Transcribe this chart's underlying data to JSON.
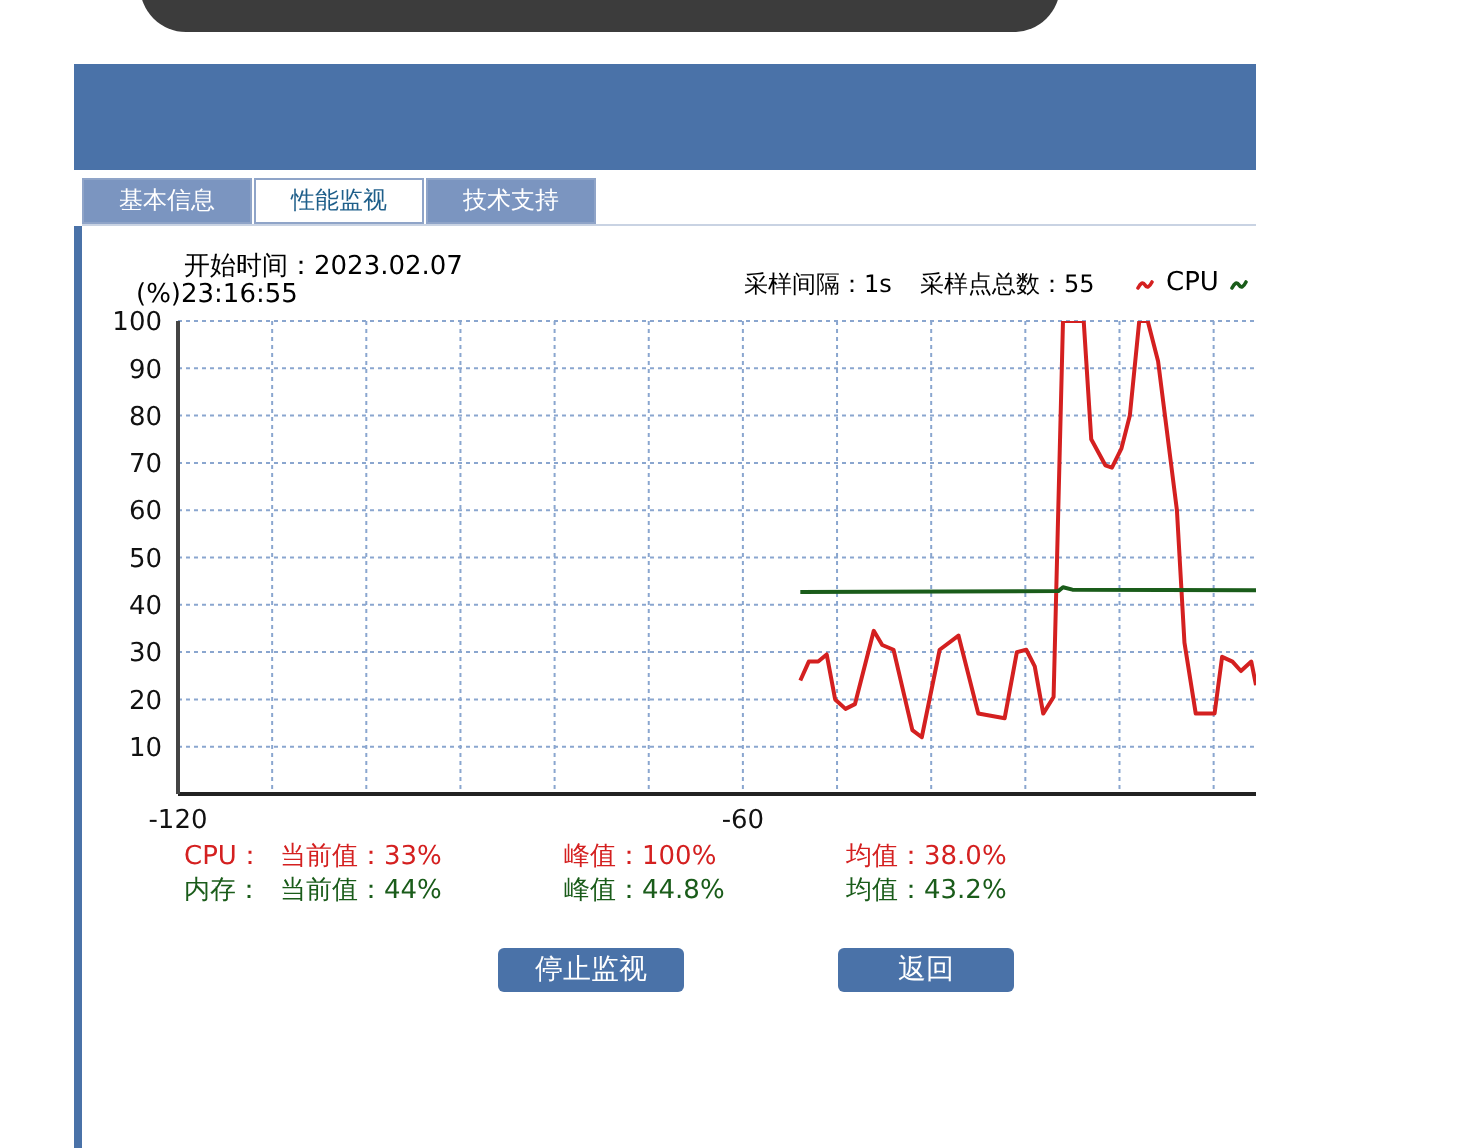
{
  "chart_data": {
    "type": "line",
    "ylabel": "(%)",
    "annotations": [
      "基本信息",
      "性能监视",
      "技术支持",
      "开始时间：2023.02.07",
      "23:16:55",
      "采样间隔：1s",
      "采样点总数：55",
      "CPU：",
      "当前值：33%",
      "峰值：100%",
      "均值：38.0%",
      "内存：",
      "当前值：44%",
      "峰值：44.8%",
      "均值：43.2%",
      "停止监视",
      "返回"
    ],
    "xlim": [
      -120,
      -5.5
    ],
    "xticks": [
      -120,
      {
        "value": -110,
        "label": null
      },
      {
        "value": -100,
        "label": null
      },
      {
        "value": -90,
        "label": null
      },
      {
        "value": -80,
        "label": null
      },
      {
        "value": -70,
        "label": null
      },
      -60,
      {
        "value": -50,
        "label": null
      },
      {
        "value": -40,
        "label": null
      },
      {
        "value": -30,
        "label": null
      },
      {
        "value": -20,
        "label": null
      },
      {
        "value": -10,
        "label": null
      }
    ],
    "ylim": [
      0,
      100
    ],
    "yticks": [
      10,
      20,
      30,
      40,
      50,
      60,
      70,
      80,
      90,
      100
    ],
    "grid": true,
    "legend": "top right",
    "marker": "none",
    "line_style": "solid",
    "series": [
      {
        "name": "CPU",
        "color": "#d42020",
        "x": [
          -53.9,
          -53,
          -52,
          -51.1,
          -50.2,
          -49.1,
          -48.1,
          -46.1,
          -45.2,
          -44,
          -42,
          -41,
          -39.1,
          -37.1,
          -35,
          -32.2,
          -30.9,
          -29.9,
          -29,
          -28.1,
          -27,
          -26,
          -23.8,
          -23,
          -21.5,
          -20.8,
          -19.8,
          -18.9,
          -17.9,
          -17,
          -15.9,
          -13.9,
          -13.1,
          -11.9,
          -9.9,
          -9.1,
          -8,
          -7.1,
          -6,
          -5.5
        ],
        "values": [
          24,
          28,
          28,
          29.5,
          20,
          18,
          19,
          34.5,
          31.5,
          30.5,
          13.5,
          12,
          30.5,
          33.5,
          17,
          16,
          30,
          30.5,
          27,
          17,
          20.5,
          100,
          100,
          75,
          69.5,
          69,
          73,
          80,
          100,
          100,
          91.5,
          60,
          32,
          17,
          17,
          29,
          28,
          26,
          28,
          23
        ]
      },
      {
        "color": "#1a5c1a",
        "x": [
          -53.9,
          -26.5,
          -26,
          -25,
          -5.5
        ],
        "values": [
          42.7,
          42.9,
          43.7,
          43.2,
          43.1
        ]
      }
    ]
  }
}
